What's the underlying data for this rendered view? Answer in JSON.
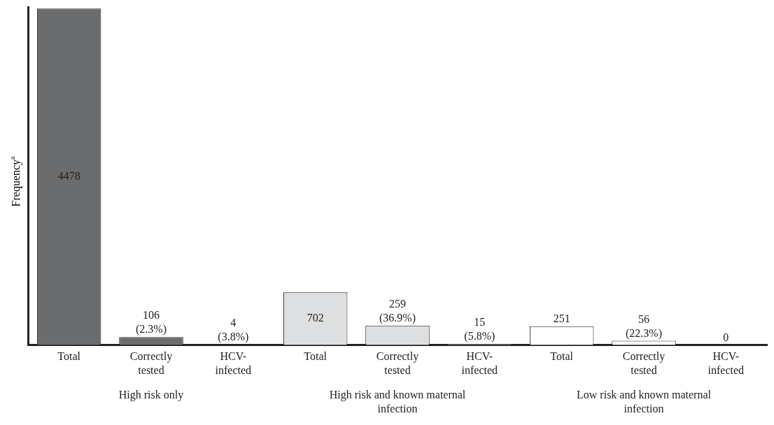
{
  "chart_data": {
    "type": "bar",
    "ylabel": "Frequency$^{a}$",
    "categories": [
      "Total",
      "Correctly tested",
      "HCV-infected",
      "Total",
      "Correctly tested",
      "HCV-infected",
      "Total",
      "Correctly tested",
      "HCV-infected"
    ],
    "values": [
      4478,
      106,
      4,
      702,
      259,
      15,
      251,
      56,
      0
    ],
    "colors": [
      "#6b6c6e",
      "#6b6c6e",
      "#6b6c6e",
      "#dedfe0",
      "#dedfe0",
      "#dedfe0",
      "#ffffff",
      "#ffffff",
      "#ffffff"
    ],
    "value_labels": [
      "4478",
      "106\n(2.3%)",
      "4\n(3.8%)",
      "702",
      "259\n(36.9%)",
      "15\n(5.8%)",
      "251",
      "56\n(22.3%)",
      "0"
    ],
    "annotations": [
      "High risk only",
      "High risk and known maternal infection",
      "Low risk and known maternal infection"
    ],
    "tick_labels": "x",
    "grid": false,
    "legend": false
  }
}
